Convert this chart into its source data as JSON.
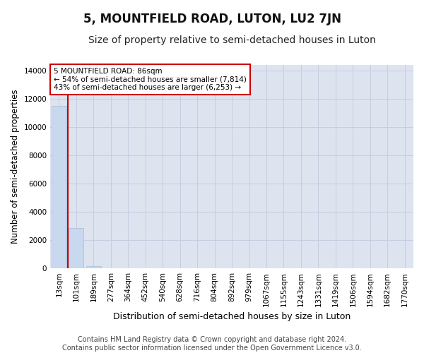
{
  "title": "5, MOUNTFIELD ROAD, LUTON, LU2 7JN",
  "subtitle": "Size of property relative to semi-detached houses in Luton",
  "xlabel": "Distribution of semi-detached houses by size in Luton",
  "ylabel": "Number of semi-detached properties",
  "annotation_title": "5 MOUNTFIELD ROAD: 86sqm",
  "annotation_line2": "← 54% of semi-detached houses are smaller (7,814)",
  "annotation_line3": "43% of semi-detached houses are larger (6,253) →",
  "footer1": "Contains HM Land Registry data © Crown copyright and database right 2024.",
  "footer2": "Contains public sector information licensed under the Open Government Licence v3.0.",
  "categories": [
    "13sqm",
    "101sqm",
    "189sqm",
    "277sqm",
    "364sqm",
    "452sqm",
    "540sqm",
    "628sqm",
    "716sqm",
    "804sqm",
    "892sqm",
    "979sqm",
    "1067sqm",
    "1155sqm",
    "1243sqm",
    "1331sqm",
    "1419sqm",
    "1506sqm",
    "1594sqm",
    "1682sqm",
    "1770sqm"
  ],
  "values": [
    11500,
    2850,
    130,
    0,
    0,
    0,
    0,
    0,
    0,
    0,
    0,
    0,
    0,
    0,
    0,
    0,
    0,
    0,
    0,
    0,
    0
  ],
  "bar_color": "#c8d8ee",
  "bar_edge_color": "#a8bcd8",
  "annotation_box_color": "#ffffff",
  "annotation_box_edge": "#cc0000",
  "red_line_color": "#cc0000",
  "ylim_max": 14400,
  "yticks": [
    0,
    2000,
    4000,
    6000,
    8000,
    10000,
    12000,
    14000
  ],
  "grid_color": "#c8cce0",
  "bg_color": "#dde4f0",
  "title_fontsize": 12,
  "subtitle_fontsize": 10,
  "axis_label_fontsize": 8.5,
  "tick_fontsize": 7.5,
  "ann_fontsize": 7.5,
  "footer_fontsize": 7
}
